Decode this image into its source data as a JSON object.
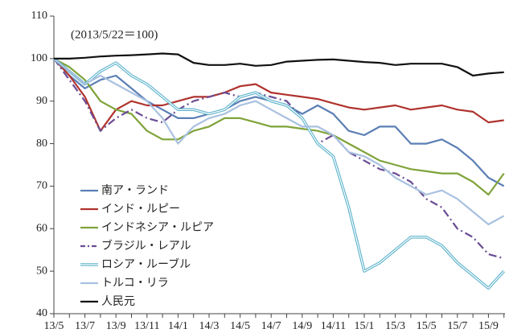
{
  "chart_data": {
    "type": "line",
    "annotation": "(2013/5/22＝100)",
    "categories": [
      "13/5",
      null,
      "13/7",
      null,
      "13/9",
      null,
      "13/11",
      null,
      "14/1",
      null,
      "14/3",
      null,
      "14/5",
      null,
      "14/7",
      null,
      "14/9",
      null,
      "14/11",
      null,
      "15/1",
      null,
      "15/3",
      null,
      "15/5",
      null,
      "15/7",
      null,
      "15/9",
      null
    ],
    "ylim": [
      40,
      110
    ],
    "yticks": [
      40,
      50,
      60,
      70,
      80,
      90,
      100,
      110
    ],
    "legend": "lower left",
    "series": [
      {
        "name": "南ア・ランド",
        "color": "#5b7fb5",
        "style": "solid",
        "values": [
          100,
          96,
          93,
          95,
          96,
          93,
          90,
          88,
          86,
          86,
          87,
          88,
          90,
          91,
          90,
          89,
          87,
          89,
          87,
          83,
          82,
          84,
          84,
          80,
          80,
          81,
          79,
          76,
          72,
          70
        ]
      },
      {
        "name": "インド・ルピー",
        "color": "#b0332e",
        "style": "solid",
        "values": [
          100,
          96,
          91,
          83,
          88,
          90,
          89,
          89,
          90,
          91,
          91,
          92,
          93.5,
          94,
          92,
          91.5,
          91,
          90.5,
          89.5,
          88.5,
          88,
          88.5,
          89,
          88,
          88.5,
          89,
          88,
          87.5,
          85,
          85.5
        ]
      },
      {
        "name": "インドネシア・ルピア",
        "color": "#7fa33a",
        "style": "solid",
        "values": [
          100,
          98,
          95,
          90,
          88,
          87,
          83,
          81,
          81,
          83,
          84,
          86,
          86,
          85,
          84,
          84,
          83.5,
          83,
          82,
          80,
          78,
          76,
          75,
          74,
          73.5,
          73,
          73,
          71,
          68,
          73
        ]
      },
      {
        "name": "ブラジル・レアル",
        "color": "#6a4c93",
        "style": "dashdot",
        "values": [
          100,
          95,
          90,
          83,
          86,
          88,
          86,
          85,
          88,
          90,
          91,
          92,
          91,
          92,
          91,
          90,
          86,
          80,
          82,
          78,
          76,
          74,
          73,
          71,
          67,
          65,
          60,
          58,
          54,
          53
        ]
      },
      {
        "name": "ロシア・ルーブル",
        "color": "#5fb4cc",
        "style": "double",
        "values": [
          100,
          97,
          94,
          97,
          99,
          96,
          94,
          91,
          88,
          88,
          87,
          88,
          91,
          92,
          90,
          89,
          86,
          80,
          77,
          65,
          50,
          52,
          55,
          58,
          58,
          56,
          52,
          49,
          46,
          50
        ]
      },
      {
        "name": "トルコ・リラ",
        "color": "#a9c1e0",
        "style": "solid",
        "values": [
          100,
          97,
          94,
          96,
          94,
          92,
          90,
          86,
          80,
          84,
          86,
          87,
          89,
          90,
          88,
          86,
          84,
          84,
          82,
          78,
          77,
          75,
          72,
          70,
          68,
          69,
          67,
          64,
          61,
          63
        ]
      },
      {
        "name": "人民元",
        "color": "#111111",
        "style": "solid",
        "values": [
          100,
          100,
          100.2,
          100.5,
          100.7,
          100.8,
          101,
          101.2,
          101,
          99,
          98.5,
          98.5,
          98.8,
          98.3,
          98.5,
          99.3,
          99.5,
          99.7,
          99.8,
          99.5,
          99.2,
          99,
          98.5,
          98.8,
          98.8,
          98.8,
          98,
          96,
          96.5,
          96.8
        ]
      }
    ]
  }
}
